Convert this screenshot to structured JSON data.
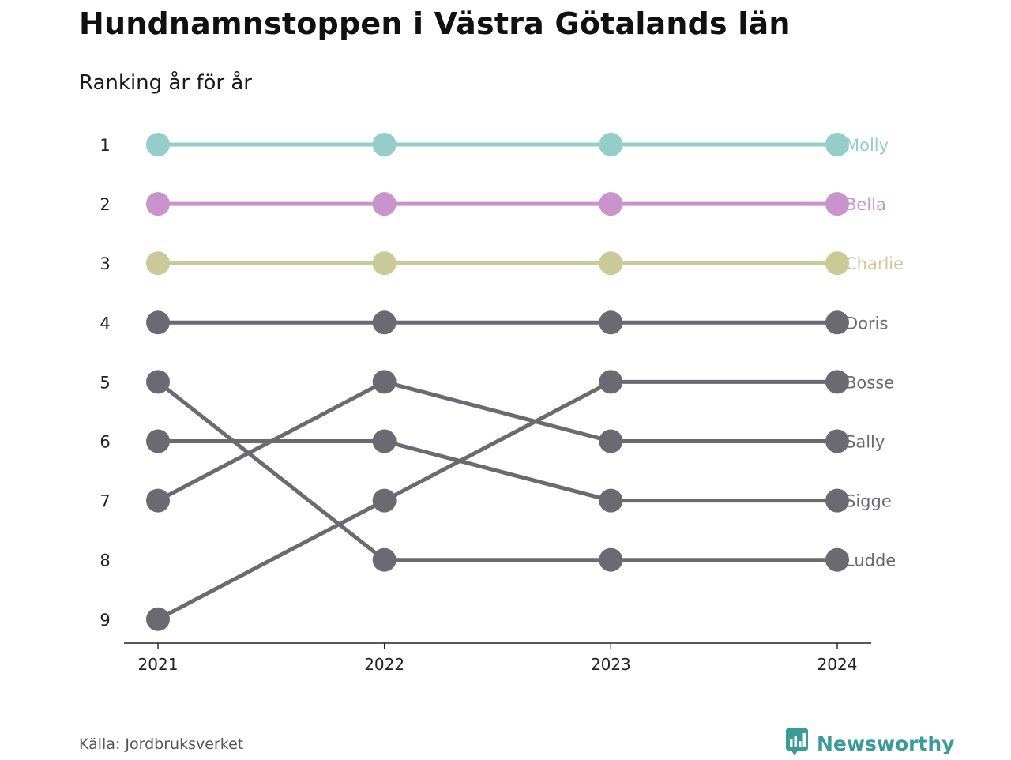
{
  "header": {
    "title": "Hundnamnstoppen i Västra Götalands län",
    "subtitle": "Ranking år för år"
  },
  "footer": {
    "source": "Källa: Jordbruksverket",
    "brand": "Newsworthy",
    "brand_icon": "newsworthy-logo-icon",
    "brand_color": "#3a9b97"
  },
  "chart_data": {
    "type": "line",
    "x": [
      "2021",
      "2022",
      "2023",
      "2024"
    ],
    "y_ticks": [
      1,
      2,
      3,
      4,
      5,
      6,
      7,
      8,
      9
    ],
    "y_reversed": true,
    "ylim": [
      1,
      9
    ],
    "grid": false,
    "legend": "end-labels",
    "series": [
      {
        "name": "Molly",
        "values": [
          1,
          1,
          1,
          1
        ],
        "color": "#94cdc9"
      },
      {
        "name": "Bella",
        "values": [
          2,
          2,
          2,
          2
        ],
        "color": "#c994cb"
      },
      {
        "name": "Charlie",
        "values": [
          3,
          3,
          3,
          3
        ],
        "color": "#c9ca97"
      },
      {
        "name": "Doris",
        "values": [
          4,
          4,
          4,
          4
        ],
        "color": "#6b6a72"
      },
      {
        "name": "Bosse",
        "values": [
          9,
          7,
          5,
          5
        ],
        "color": "#6b6a72"
      },
      {
        "name": "Sally",
        "values": [
          7,
          5,
          6,
          6
        ],
        "color": "#6b6a72"
      },
      {
        "name": "Sigge",
        "values": [
          6,
          6,
          7,
          7
        ],
        "color": "#6b6a72"
      },
      {
        "name": "Ludde",
        "values": [
          5,
          8,
          8,
          8
        ],
        "color": "#6b6a72"
      }
    ]
  }
}
